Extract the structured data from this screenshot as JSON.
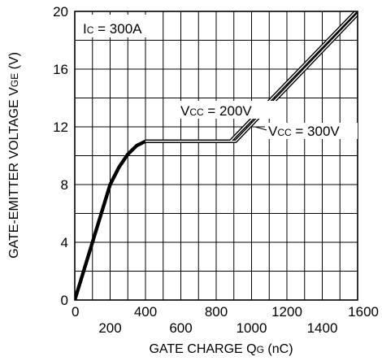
{
  "chart_data": {
    "type": "line",
    "xlim": [
      0,
      1600
    ],
    "ylim": [
      0,
      20
    ],
    "x_ticks": [
      0,
      200,
      400,
      600,
      800,
      1000,
      1200,
      1400,
      1600
    ],
    "y_ticks": [
      0,
      4,
      8,
      12,
      16,
      20
    ],
    "grid": true,
    "xlabel": {
      "main": "GATE CHARGE  Q",
      "sub": "G",
      "unit": " (nC)"
    },
    "ylabel": {
      "main": "GATE-EMITTER VOLTAGE  V",
      "sub": "GE",
      "unit": " (V)"
    },
    "series": [
      {
        "name": {
          "main": "V",
          "sub": "CC",
          "rest": " = 200V"
        },
        "points": [
          [
            0,
            0
          ],
          [
            200,
            8
          ],
          [
            250,
            9.2
          ],
          [
            300,
            10.1
          ],
          [
            350,
            10.7
          ],
          [
            400,
            11
          ],
          [
            880,
            11
          ],
          [
            1590,
            20
          ]
        ]
      },
      {
        "name": {
          "main": "V",
          "sub": "CC",
          "rest": " = 300V"
        },
        "points": [
          [
            0,
            0
          ],
          [
            200,
            8
          ],
          [
            250,
            9.2
          ],
          [
            300,
            10.1
          ],
          [
            350,
            10.7
          ],
          [
            400,
            11
          ],
          [
            910,
            11
          ],
          [
            1615,
            20
          ]
        ]
      }
    ],
    "annotations": [
      {
        "main": "I",
        "sub": "C",
        "rest": " = 300A"
      }
    ]
  }
}
